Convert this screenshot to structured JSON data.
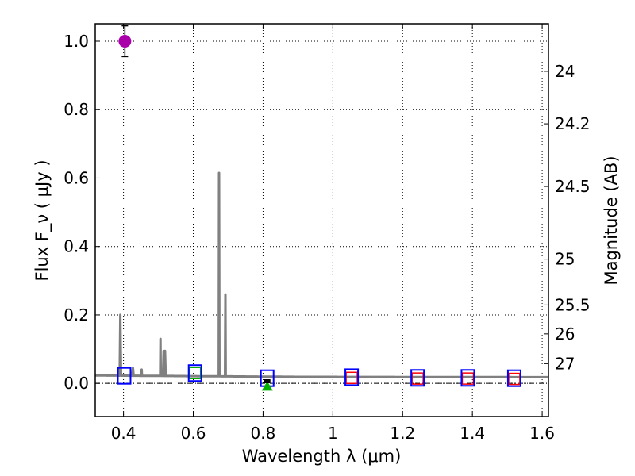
{
  "chart_data": {
    "type": "scatter",
    "xlabel": "Wavelength  λ (μm)",
    "ylabel": "Flux  F_ν  ( μJy )",
    "y2label": "Magnitude (AB)",
    "xlim": [
      0.319,
      1.618
    ],
    "ylim": [
      -0.097,
      1.051
    ],
    "grid": true,
    "xticks": [
      {
        "v": 0.4,
        "label": "0.4"
      },
      {
        "v": 0.6,
        "label": "0.6"
      },
      {
        "v": 0.8,
        "label": "0.8"
      },
      {
        "v": 1.0,
        "label": "1"
      },
      {
        "v": 1.2,
        "label": "1.2"
      },
      {
        "v": 1.4,
        "label": "1.4"
      },
      {
        "v": 1.6,
        "label": "1.6"
      }
    ],
    "yticks": [
      {
        "v": 0.0,
        "label": "0.0"
      },
      {
        "v": 0.2,
        "label": "0.2"
      },
      {
        "v": 0.4,
        "label": "0.4"
      },
      {
        "v": 0.6,
        "label": "0.6"
      },
      {
        "v": 0.8,
        "label": "0.8"
      },
      {
        "v": 1.0,
        "label": "1.0"
      }
    ],
    "y2ticks": [
      {
        "v": 24,
        "label": "24"
      },
      {
        "v": 24.2,
        "label": "24.2"
      },
      {
        "v": 24.5,
        "label": "24.5"
      },
      {
        "v": 25,
        "label": "25"
      },
      {
        "v": 25.5,
        "label": "25.5"
      },
      {
        "v": 26,
        "label": "26"
      },
      {
        "v": 27,
        "label": "27"
      }
    ],
    "spectrum": {
      "color": "#808080",
      "continuum": [
        [
          0.319,
          0.023
        ],
        [
          0.6,
          0.021
        ],
        [
          0.9,
          0.019
        ],
        [
          1.618,
          0.018
        ]
      ],
      "lines": [
        [
          0.391,
          0.2
        ],
        [
          0.427,
          0.045
        ],
        [
          0.452,
          0.04
        ],
        [
          0.506,
          0.13
        ],
        [
          0.515,
          0.095
        ],
        [
          0.519,
          0.095
        ],
        [
          0.674,
          0.615
        ],
        [
          0.692,
          0.26
        ]
      ]
    },
    "observed_photometry": {
      "color": "#0000ff",
      "x": [
        0.402,
        0.605,
        0.812,
        1.054,
        1.243,
        1.387,
        1.52
      ],
      "y": [
        0.022,
        0.03,
        0.015,
        0.018,
        0.016,
        0.016,
        0.015
      ]
    },
    "model_photometry": [
      {
        "color": "#00b000",
        "x": 0.605,
        "y": 0.03
      },
      {
        "color": "#ff0000",
        "x": 1.054,
        "y": 0.016
      },
      {
        "color": "#ff0000",
        "x": 1.243,
        "y": 0.014
      },
      {
        "color": "#ff0000",
        "x": 1.387,
        "y": 0.014
      },
      {
        "color": "#ff0000",
        "x": 1.52,
        "y": 0.013
      }
    ],
    "magenta_point": {
      "color": "#aa00aa",
      "x": 0.404,
      "y": 1.0,
      "err": 0.045
    },
    "upper_limit": {
      "color": "#00b000",
      "x": 0.812,
      "y": -0.005
    },
    "black_point": {
      "x": 0.812,
      "y": 0.005
    }
  }
}
